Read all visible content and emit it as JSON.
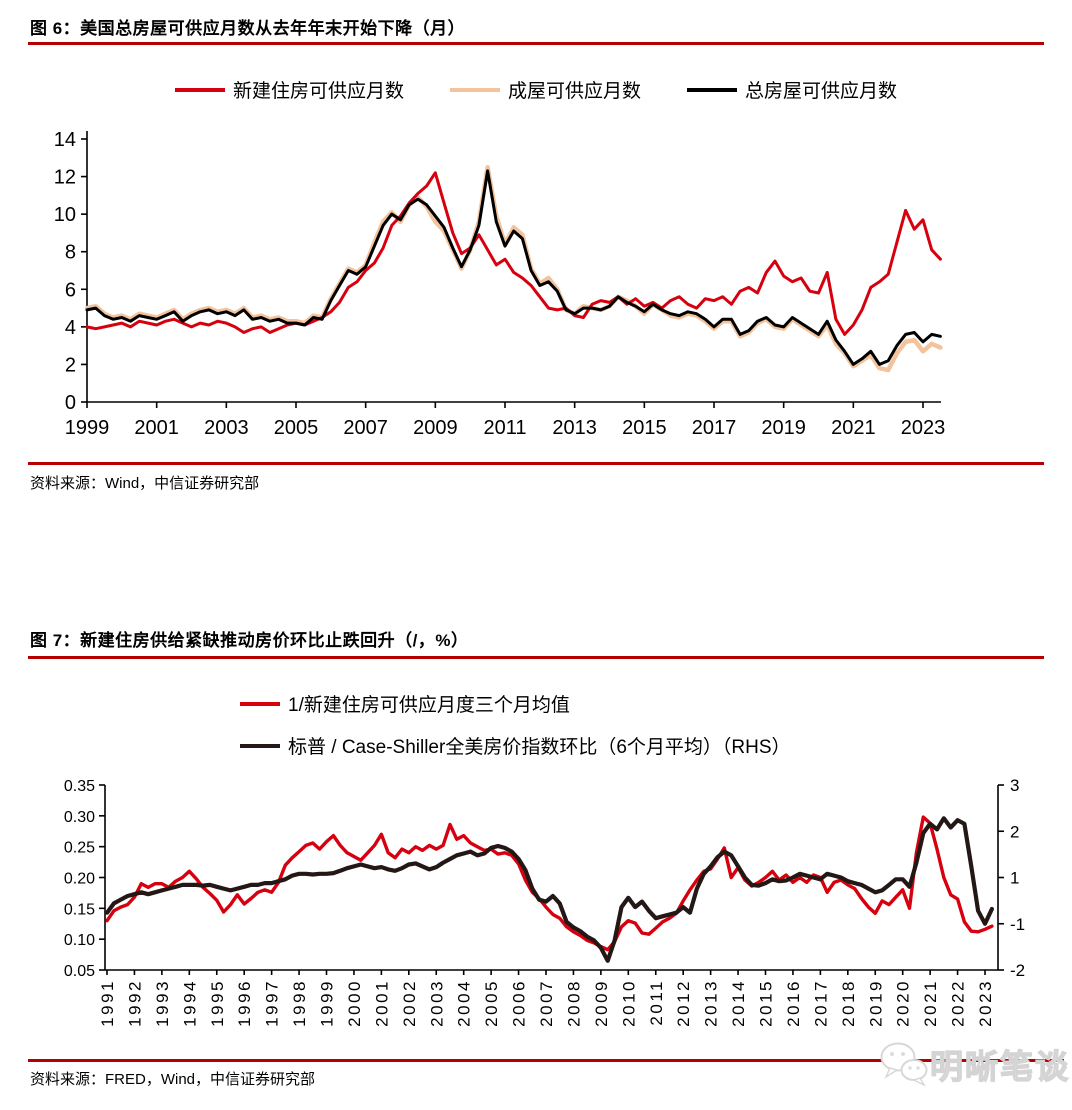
{
  "accent_rule_color": "#b40000",
  "fig6": {
    "title": "图 6：美国总房屋可供应月数从去年年末开始下降（月）",
    "source": "资料来源：Wind，中信证券研究部"
  },
  "fig7": {
    "title": "图 7：新建住房供给紧缺推动房价环比止跌回升（/，%）",
    "source": "资料来源：FRED，Wind，中信证券研究部"
  },
  "watermark": {
    "text": "明晰笔谈",
    "icon": "wechat-chat-bubbles-icon"
  },
  "chart_data": [
    {
      "type": "line",
      "title": "美国总房屋可供应月数从去年年末开始下降（月）",
      "legend_position": "top",
      "grid": false,
      "x_start": 1999,
      "x_step": 0.25,
      "xticks": [
        1999,
        2001,
        2003,
        2005,
        2007,
        2009,
        2011,
        2013,
        2015,
        2017,
        2019,
        2021,
        2023
      ],
      "ylim": [
        0,
        14
      ],
      "yticks": [
        0,
        2,
        4,
        6,
        8,
        10,
        12,
        14
      ],
      "series": [
        {
          "name": "新建住房可供应月数",
          "color": "#d7000f",
          "values": [
            4.0,
            3.9,
            4.0,
            4.1,
            4.2,
            4.0,
            4.3,
            4.2,
            4.1,
            4.3,
            4.4,
            4.2,
            4.0,
            4.2,
            4.1,
            4.3,
            4.2,
            4.0,
            3.7,
            3.9,
            4.0,
            3.7,
            3.9,
            4.1,
            4.2,
            4.1,
            4.3,
            4.5,
            4.8,
            5.3,
            6.1,
            6.4,
            7.0,
            7.4,
            8.2,
            9.4,
            9.9,
            10.6,
            11.1,
            11.5,
            12.2,
            10.6,
            9.0,
            7.9,
            8.2,
            8.9,
            8.1,
            7.3,
            7.6,
            6.9,
            6.6,
            6.2,
            5.6,
            5.0,
            4.9,
            5.0,
            4.6,
            4.5,
            5.2,
            5.4,
            5.3,
            5.6,
            5.2,
            5.5,
            5.1,
            5.3,
            5.0,
            5.4,
            5.6,
            5.2,
            5.0,
            5.5,
            5.4,
            5.6,
            5.2,
            5.9,
            6.1,
            5.8,
            6.9,
            7.5,
            6.7,
            6.4,
            6.6,
            5.9,
            5.8,
            6.9,
            4.4,
            3.6,
            4.1,
            4.9,
            6.1,
            6.4,
            6.8,
            8.5,
            10.2,
            9.2,
            9.7,
            8.1,
            7.6
          ]
        },
        {
          "name": "成屋可供应月数",
          "color": "#f2c39c",
          "values": [
            5.0,
            5.1,
            4.7,
            4.5,
            4.6,
            4.4,
            4.7,
            4.6,
            4.5,
            4.7,
            4.9,
            4.4,
            4.7,
            4.9,
            5.0,
            4.8,
            4.9,
            4.7,
            5.0,
            4.5,
            4.6,
            4.4,
            4.5,
            4.3,
            4.3,
            4.2,
            4.6,
            4.5,
            5.5,
            6.3,
            7.1,
            6.9,
            7.3,
            8.5,
            9.6,
            10.1,
            9.6,
            10.5,
            10.9,
            10.4,
            9.6,
            9.1,
            8.1,
            7.1,
            8.1,
            9.6,
            12.5,
            9.9,
            8.4,
            9.3,
            8.9,
            7.1,
            6.3,
            6.6,
            6.0,
            4.9,
            4.7,
            5.1,
            5.0,
            4.9,
            5.1,
            5.6,
            5.4,
            5.1,
            4.7,
            5.2,
            4.9,
            4.6,
            4.5,
            4.7,
            4.6,
            4.3,
            3.9,
            4.3,
            4.3,
            3.5,
            3.7,
            4.2,
            4.4,
            4.0,
            3.9,
            4.4,
            4.1,
            3.8,
            3.5,
            4.1,
            3.1,
            2.6,
            1.9,
            2.2,
            2.5,
            1.8,
            1.7,
            2.6,
            3.2,
            3.3,
            2.7,
            3.1,
            2.9
          ]
        },
        {
          "name": "总房屋可供应月数",
          "color": "#000000",
          "values": [
            4.9,
            5.0,
            4.6,
            4.4,
            4.5,
            4.3,
            4.6,
            4.5,
            4.4,
            4.6,
            4.8,
            4.3,
            4.6,
            4.8,
            4.9,
            4.7,
            4.8,
            4.6,
            4.9,
            4.4,
            4.5,
            4.3,
            4.4,
            4.2,
            4.2,
            4.1,
            4.5,
            4.4,
            5.4,
            6.2,
            7.0,
            6.8,
            7.2,
            8.3,
            9.4,
            10.0,
            9.7,
            10.5,
            10.8,
            10.5,
            9.9,
            9.3,
            8.2,
            7.2,
            8.1,
            9.4,
            12.3,
            9.6,
            8.3,
            9.1,
            8.7,
            7.0,
            6.2,
            6.4,
            5.9,
            4.9,
            4.7,
            5.0,
            5.0,
            4.9,
            5.1,
            5.6,
            5.3,
            5.1,
            4.8,
            5.2,
            4.9,
            4.7,
            4.6,
            4.8,
            4.7,
            4.4,
            4.0,
            4.4,
            4.4,
            3.6,
            3.8,
            4.3,
            4.5,
            4.1,
            4.0,
            4.5,
            4.2,
            3.9,
            3.6,
            4.3,
            3.3,
            2.7,
            2.0,
            2.3,
            2.7,
            2.0,
            2.2,
            3.0,
            3.6,
            3.7,
            3.2,
            3.6,
            3.5
          ]
        }
      ]
    },
    {
      "type": "line",
      "title": "新建住房供给紧缺推动房价环比止跌回升（/，%）",
      "legend_position": "top-left",
      "grid": false,
      "x_start": 1991,
      "x_step": 0.25,
      "xticks": [
        1991,
        1992,
        1993,
        1994,
        1995,
        1996,
        1997,
        1998,
        1999,
        2000,
        2001,
        2002,
        2003,
        2004,
        2005,
        2006,
        2007,
        2008,
        2009,
        2010,
        2011,
        2012,
        2013,
        2014,
        2015,
        2016,
        2017,
        2018,
        2019,
        2020,
        2021,
        2022,
        2023
      ],
      "left_ylim": [
        0.05,
        0.35
      ],
      "left_yticks": [
        0.35,
        0.3,
        0.25,
        0.2,
        0.15,
        0.1,
        0.05
      ],
      "right_ylim": [
        -2,
        3
      ],
      "right_tick_labels": [
        "3",
        "2",
        "1",
        "-1",
        "-2"
      ],
      "series": [
        {
          "name": "1/新建住房可供应月度三个月均值",
          "axis": "left",
          "color": "#d7000f",
          "values": [
            0.13,
            0.146,
            0.152,
            0.156,
            0.168,
            0.19,
            0.184,
            0.19,
            0.19,
            0.184,
            0.194,
            0.2,
            0.21,
            0.198,
            0.184,
            0.174,
            0.163,
            0.144,
            0.156,
            0.172,
            0.157,
            0.166,
            0.176,
            0.18,
            0.176,
            0.192,
            0.22,
            0.232,
            0.242,
            0.252,
            0.256,
            0.246,
            0.258,
            0.268,
            0.252,
            0.24,
            0.234,
            0.228,
            0.24,
            0.252,
            0.27,
            0.24,
            0.232,
            0.246,
            0.24,
            0.25,
            0.244,
            0.252,
            0.246,
            0.252,
            0.286,
            0.262,
            0.268,
            0.256,
            0.25,
            0.244,
            0.246,
            0.238,
            0.24,
            0.236,
            0.222,
            0.196,
            0.176,
            0.166,
            0.152,
            0.14,
            0.134,
            0.12,
            0.112,
            0.106,
            0.098,
            0.094,
            0.088,
            0.083,
            0.096,
            0.12,
            0.13,
            0.126,
            0.11,
            0.108,
            0.118,
            0.128,
            0.134,
            0.142,
            0.162,
            0.18,
            0.196,
            0.21,
            0.214,
            0.23,
            0.248,
            0.2,
            0.216,
            0.196,
            0.186,
            0.192,
            0.2,
            0.21,
            0.196,
            0.204,
            0.192,
            0.2,
            0.192,
            0.204,
            0.2,
            0.176,
            0.192,
            0.196,
            0.188,
            0.182,
            0.166,
            0.152,
            0.142,
            0.162,
            0.156,
            0.168,
            0.18,
            0.15,
            0.24,
            0.298,
            0.288,
            0.246,
            0.2,
            0.172,
            0.165,
            0.128,
            0.113,
            0.112,
            0.116,
            0.121
          ]
        },
        {
          "name": "标普 / Case-Shiller全美房价指数环比（6个月平均）（RHS）",
          "axis": "right",
          "color": "#231815",
          "values": [
            -0.45,
            -0.2,
            -0.1,
            0.0,
            0.05,
            0.1,
            0.05,
            0.1,
            0.15,
            0.2,
            0.25,
            0.3,
            0.3,
            0.3,
            0.28,
            0.3,
            0.25,
            0.2,
            0.15,
            0.2,
            0.25,
            0.3,
            0.3,
            0.35,
            0.35,
            0.4,
            0.45,
            0.55,
            0.6,
            0.6,
            0.58,
            0.6,
            0.6,
            0.62,
            0.68,
            0.75,
            0.8,
            0.85,
            0.8,
            0.75,
            0.78,
            0.72,
            0.68,
            0.75,
            0.85,
            0.88,
            0.8,
            0.72,
            0.78,
            0.9,
            1.0,
            1.1,
            1.15,
            1.2,
            1.1,
            1.15,
            1.3,
            1.35,
            1.3,
            1.2,
            1.0,
            0.7,
            0.2,
            -0.1,
            -0.15,
            0.0,
            -0.2,
            -0.7,
            -0.85,
            -0.95,
            -1.1,
            -1.2,
            -1.4,
            -1.75,
            -1.2,
            -0.3,
            -0.05,
            -0.3,
            -0.15,
            -0.4,
            -0.6,
            -0.55,
            -0.5,
            -0.45,
            -0.3,
            -0.45,
            0.2,
            0.6,
            0.8,
            1.05,
            1.2,
            1.1,
            0.8,
            0.5,
            0.3,
            0.28,
            0.35,
            0.45,
            0.4,
            0.42,
            0.5,
            0.6,
            0.55,
            0.5,
            0.45,
            0.6,
            0.55,
            0.5,
            0.4,
            0.35,
            0.3,
            0.2,
            0.1,
            0.15,
            0.3,
            0.45,
            0.45,
            0.25,
            0.9,
            1.7,
            1.95,
            1.8,
            2.1,
            1.85,
            2.05,
            1.95,
            0.8,
            -0.4,
            -0.75,
            -0.35
          ]
        }
      ]
    }
  ]
}
